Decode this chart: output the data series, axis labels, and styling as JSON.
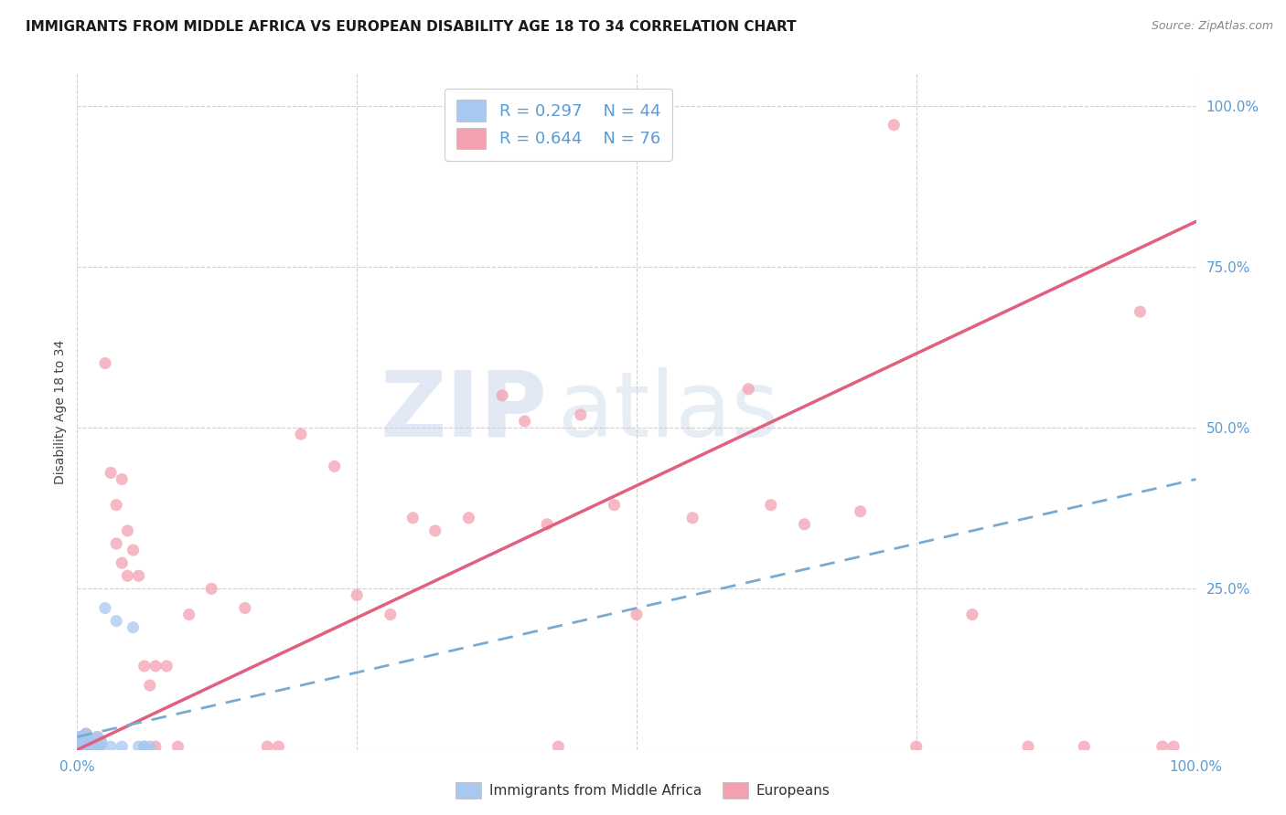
{
  "title": "IMMIGRANTS FROM MIDDLE AFRICA VS EUROPEAN DISABILITY AGE 18 TO 34 CORRELATION CHART",
  "source": "Source: ZipAtlas.com",
  "ylabel": "Disability Age 18 to 34",
  "xlim": [
    0.0,
    1.0
  ],
  "ylim": [
    0.0,
    1.05
  ],
  "grid_color": "#cccccc",
  "background_color": "#ffffff",
  "legend_r1": "R = 0.297",
  "legend_n1": "N = 44",
  "legend_r2": "R = 0.644",
  "legend_n2": "N = 76",
  "color_blue": "#a8c8f0",
  "color_pink": "#f4a0b0",
  "color_blue_line": "#7aaad0",
  "color_pink_line": "#e06080",
  "title_fontsize": 11,
  "axis_label_fontsize": 10,
  "tick_label_color": "#5b9bd5",
  "legend_fontsize": 12,
  "blue_scatter": [
    [
      0.002,
      0.005
    ],
    [
      0.003,
      0.01
    ],
    [
      0.003,
      0.02
    ],
    [
      0.004,
      0.005
    ],
    [
      0.004,
      0.015
    ],
    [
      0.005,
      0.005
    ],
    [
      0.005,
      0.02
    ],
    [
      0.006,
      0.01
    ],
    [
      0.006,
      0.015
    ],
    [
      0.007,
      0.005
    ],
    [
      0.007,
      0.02
    ],
    [
      0.008,
      0.01
    ],
    [
      0.008,
      0.025
    ],
    [
      0.009,
      0.005
    ],
    [
      0.009,
      0.015
    ],
    [
      0.01,
      0.005
    ],
    [
      0.01,
      0.02
    ],
    [
      0.011,
      0.01
    ],
    [
      0.012,
      0.005
    ],
    [
      0.012,
      0.015
    ],
    [
      0.013,
      0.01
    ],
    [
      0.014,
      0.005
    ],
    [
      0.015,
      0.015
    ],
    [
      0.016,
      0.01
    ],
    [
      0.017,
      0.005
    ],
    [
      0.018,
      0.02
    ],
    [
      0.019,
      0.01
    ],
    [
      0.02,
      0.005
    ],
    [
      0.021,
      0.015
    ],
    [
      0.022,
      0.01
    ],
    [
      0.025,
      0.22
    ],
    [
      0.03,
      0.005
    ],
    [
      0.035,
      0.2
    ],
    [
      0.04,
      0.005
    ],
    [
      0.05,
      0.19
    ],
    [
      0.055,
      0.005
    ],
    [
      0.06,
      0.005
    ],
    [
      0.065,
      0.005
    ],
    [
      0.001,
      0.005
    ],
    [
      0.002,
      0.02
    ],
    [
      0.003,
      0.005
    ],
    [
      0.004,
      0.01
    ],
    [
      0.005,
      0.005
    ],
    [
      0.06,
      0.005
    ]
  ],
  "pink_scatter": [
    [
      0.002,
      0.005
    ],
    [
      0.003,
      0.01
    ],
    [
      0.003,
      0.02
    ],
    [
      0.004,
      0.005
    ],
    [
      0.004,
      0.015
    ],
    [
      0.005,
      0.005
    ],
    [
      0.005,
      0.02
    ],
    [
      0.006,
      0.01
    ],
    [
      0.006,
      0.015
    ],
    [
      0.007,
      0.005
    ],
    [
      0.007,
      0.02
    ],
    [
      0.008,
      0.01
    ],
    [
      0.008,
      0.025
    ],
    [
      0.009,
      0.005
    ],
    [
      0.009,
      0.015
    ],
    [
      0.01,
      0.005
    ],
    [
      0.01,
      0.02
    ],
    [
      0.011,
      0.01
    ],
    [
      0.012,
      0.005
    ],
    [
      0.012,
      0.015
    ],
    [
      0.013,
      0.01
    ],
    [
      0.014,
      0.005
    ],
    [
      0.015,
      0.015
    ],
    [
      0.016,
      0.01
    ],
    [
      0.017,
      0.005
    ],
    [
      0.018,
      0.02
    ],
    [
      0.019,
      0.01
    ],
    [
      0.02,
      0.005
    ],
    [
      0.025,
      0.6
    ],
    [
      0.03,
      0.43
    ],
    [
      0.035,
      0.38
    ],
    [
      0.035,
      0.32
    ],
    [
      0.04,
      0.42
    ],
    [
      0.04,
      0.29
    ],
    [
      0.045,
      0.27
    ],
    [
      0.045,
      0.34
    ],
    [
      0.05,
      0.31
    ],
    [
      0.055,
      0.27
    ],
    [
      0.06,
      0.13
    ],
    [
      0.065,
      0.1
    ],
    [
      0.07,
      0.005
    ],
    [
      0.07,
      0.13
    ],
    [
      0.08,
      0.13
    ],
    [
      0.09,
      0.005
    ],
    [
      0.1,
      0.21
    ],
    [
      0.12,
      0.25
    ],
    [
      0.15,
      0.22
    ],
    [
      0.17,
      0.005
    ],
    [
      0.18,
      0.005
    ],
    [
      0.2,
      0.49
    ],
    [
      0.23,
      0.44
    ],
    [
      0.25,
      0.24
    ],
    [
      0.28,
      0.21
    ],
    [
      0.3,
      0.36
    ],
    [
      0.32,
      0.34
    ],
    [
      0.35,
      0.36
    ],
    [
      0.38,
      0.55
    ],
    [
      0.4,
      0.51
    ],
    [
      0.42,
      0.35
    ],
    [
      0.43,
      0.005
    ],
    [
      0.45,
      0.52
    ],
    [
      0.48,
      0.38
    ],
    [
      0.5,
      0.21
    ],
    [
      0.55,
      0.36
    ],
    [
      0.6,
      0.56
    ],
    [
      0.62,
      0.38
    ],
    [
      0.65,
      0.35
    ],
    [
      0.7,
      0.37
    ],
    [
      0.73,
      0.97
    ],
    [
      0.75,
      0.005
    ],
    [
      0.8,
      0.21
    ],
    [
      0.85,
      0.005
    ],
    [
      0.9,
      0.005
    ],
    [
      0.95,
      0.68
    ],
    [
      0.97,
      0.005
    ],
    [
      0.98,
      0.005
    ]
  ],
  "pink_line_x0": 0.0,
  "pink_line_y0": 0.0,
  "pink_line_x1": 1.0,
  "pink_line_y1": 0.82,
  "blue_line_x0": 0.0,
  "blue_line_y0": 0.02,
  "blue_line_x1": 1.0,
  "blue_line_y1": 0.42
}
